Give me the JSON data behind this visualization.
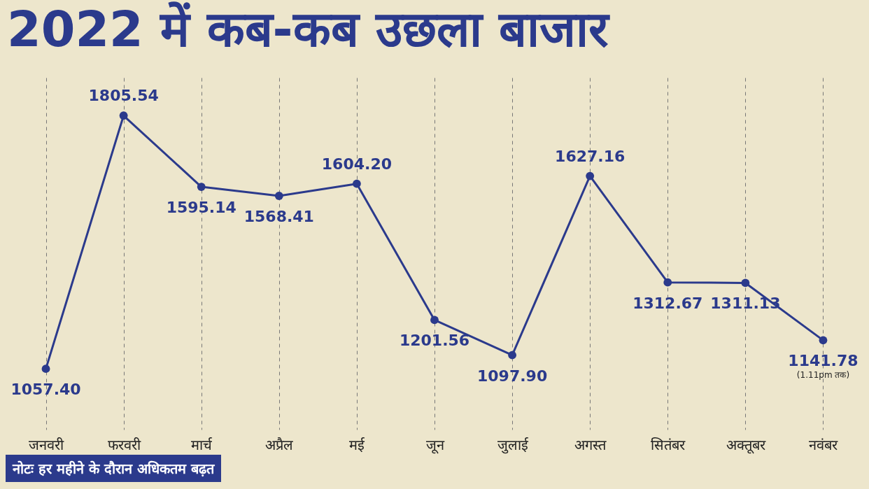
{
  "chart_data": {
    "type": "line",
    "title": "2022 में कब-कब उछला बाजार",
    "categories": [
      "जनवरी",
      "फरवरी",
      "मार्च",
      "अप्रैल",
      "मई",
      "जून",
      "जुलाई",
      "अगस्त",
      "सितंबर",
      "अक्तूबर",
      "नवंबर"
    ],
    "series": [
      {
        "color": "#2b3a8c",
        "values": [
          1057.4,
          1805.54,
          1595.14,
          1568.41,
          1604.2,
          1201.56,
          1097.9,
          1627.16,
          1312.67,
          1311.13,
          1141.78
        ],
        "value_labels": [
          "1057.40",
          "1805.54",
          "1595.14",
          "1568.41",
          "1604.20",
          "1201.56",
          "1097.90",
          "1627.16",
          "1312.67",
          "1311.13",
          "1141.78"
        ]
      }
    ],
    "grid": "x",
    "marker": "circle",
    "line_style": "solid",
    "annotations": [
      "नोटः हर महीने के दौरान अधिकतम बढ़त",
      "(1.11pm तक)"
    ]
  }
}
